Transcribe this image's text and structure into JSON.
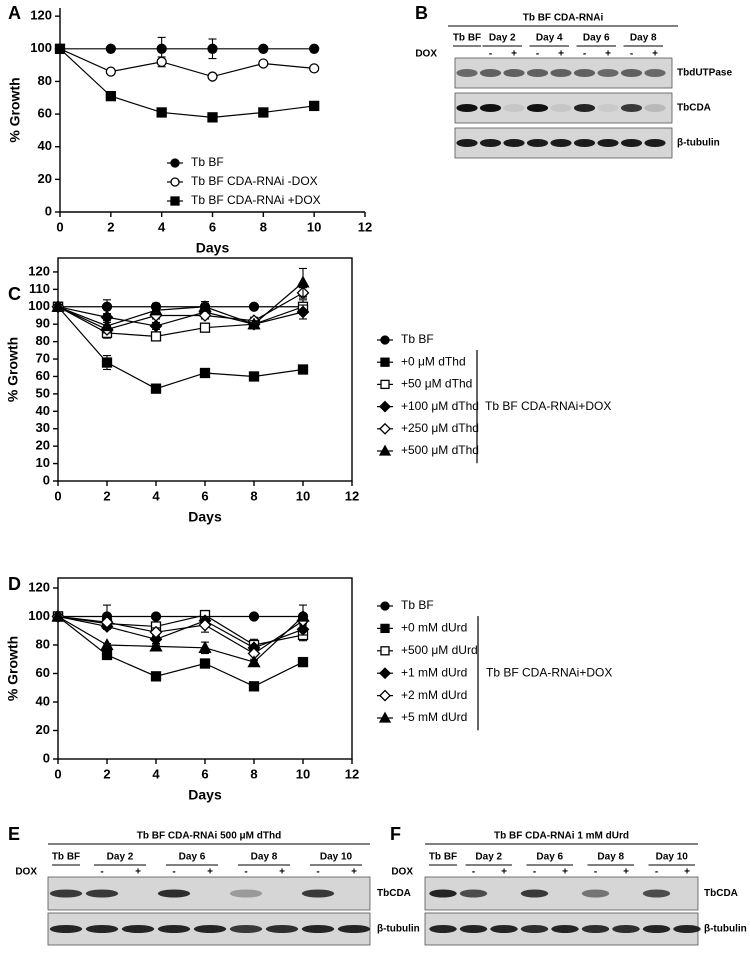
{
  "panels": [
    "A",
    "B",
    "C",
    "D",
    "E",
    "F"
  ],
  "chart_data": [
    {
      "type": "line",
      "x": [
        0,
        2,
        4,
        6,
        8,
        10
      ],
      "xlim": [
        0,
        12
      ],
      "xticks": [
        0,
        2,
        4,
        6,
        8,
        10,
        12
      ],
      "ylim": [
        0,
        125
      ],
      "yticks": [
        0,
        20,
        40,
        60,
        80,
        100,
        120
      ],
      "x_label": "Days",
      "y_label": "% Growth",
      "frame": false,
      "series": [
        {
          "name": "Tb BF",
          "color": "#000000",
          "marker": "circle-filled",
          "values": [
            100,
            100,
            100,
            100,
            100,
            100
          ],
          "errors": [
            0,
            0,
            7,
            6,
            0,
            0
          ]
        },
        {
          "name": "Tb BF CDA-RNAi -DOX",
          "color": "#000000",
          "marker": "circle-open",
          "values": [
            100,
            86,
            92,
            83,
            91,
            88
          ],
          "errors": [
            0,
            0,
            3,
            0,
            0,
            0
          ]
        },
        {
          "name": "Tb BF CDA-RNAi +DOX",
          "color": "#000000",
          "marker": "square-filled",
          "values": [
            100,
            71,
            61,
            58,
            61,
            65
          ],
          "errors": [
            0,
            0,
            0,
            0,
            0,
            2
          ]
        }
      ]
    },
    {
      "type": "line",
      "x": [
        0,
        2,
        4,
        6,
        8,
        10
      ],
      "xlim": [
        0,
        12
      ],
      "xticks": [
        0,
        2,
        4,
        6,
        8,
        10,
        12
      ],
      "ylim": [
        0,
        128
      ],
      "yticks": [
        0,
        10,
        20,
        30,
        40,
        50,
        60,
        70,
        80,
        90,
        100,
        110,
        120
      ],
      "x_label": "Days",
      "y_label": "% Growth",
      "frame": true,
      "legend_group_label": "Tb BF CDA-RNAi+DOX",
      "series": [
        {
          "name": "Tb BF",
          "color": "#000000",
          "marker": "circle-filled",
          "values": [
            100,
            100,
            100,
            100,
            100,
            100
          ],
          "errors": [
            0,
            4,
            2,
            3,
            0,
            0
          ]
        },
        {
          "name": "+0 μM dThd",
          "color": "#000000",
          "marker": "square-filled",
          "values": [
            100,
            68,
            53,
            62,
            60,
            64
          ],
          "errors": [
            0,
            4,
            1,
            1,
            1,
            1
          ]
        },
        {
          "name": "+50 μM dThd",
          "color": "#000000",
          "marker": "square-open",
          "values": [
            100,
            85,
            83,
            88,
            90,
            100
          ],
          "errors": [
            0,
            3,
            2,
            2,
            2,
            4
          ]
        },
        {
          "name": "+100 μM dThd",
          "color": "#000000",
          "marker": "diamond-filled",
          "values": [
            100,
            94,
            89,
            97,
            90,
            97
          ],
          "errors": [
            0,
            2,
            2,
            3,
            2,
            4
          ]
        },
        {
          "name": "+250 μM dThd",
          "color": "#000000",
          "marker": "diamond-open",
          "values": [
            100,
            87,
            95,
            95,
            92,
            108
          ],
          "errors": [
            0,
            2,
            2,
            2,
            2,
            3
          ]
        },
        {
          "name": "+500 μM dThd",
          "color": "#000000",
          "marker": "triangle-filled",
          "values": [
            100,
            89,
            98,
            100,
            90,
            114
          ],
          "errors": [
            0,
            2,
            2,
            2,
            2,
            8
          ]
        }
      ]
    },
    {
      "type": "line",
      "x": [
        0,
        2,
        4,
        6,
        8,
        10
      ],
      "xlim": [
        0,
        12
      ],
      "xticks": [
        0,
        2,
        4,
        6,
        8,
        10,
        12
      ],
      "ylim": [
        0,
        127
      ],
      "yticks": [
        0,
        20,
        40,
        60,
        80,
        100,
        120
      ],
      "x_label": "Days",
      "y_label": "% Growth",
      "frame": true,
      "legend_group_label": "Tb BF CDA-RNAi+DOX",
      "series": [
        {
          "name": "Tb BF",
          "color": "#000000",
          "marker": "circle-filled",
          "values": [
            100,
            100,
            100,
            100,
            100,
            100
          ],
          "errors": [
            0,
            8,
            0,
            0,
            0,
            8
          ]
        },
        {
          "name": "+0 mM dUrd",
          "color": "#000000",
          "marker": "square-filled",
          "values": [
            100,
            73,
            58,
            67,
            51,
            68
          ],
          "errors": [
            0,
            1,
            3,
            1,
            1,
            1
          ]
        },
        {
          "name": "+500 μM dUrd",
          "color": "#000000",
          "marker": "square-open",
          "values": [
            100,
            95,
            93,
            101,
            80,
            87
          ],
          "errors": [
            0,
            3,
            3,
            3,
            4,
            4
          ]
        },
        {
          "name": "+1 mM dUrd",
          "color": "#000000",
          "marker": "diamond-filled",
          "values": [
            100,
            93,
            84,
            97,
            78,
            91
          ],
          "errors": [
            0,
            2,
            3,
            3,
            2,
            4
          ]
        },
        {
          "name": "+2 mM dUrd",
          "color": "#000000",
          "marker": "diamond-open",
          "values": [
            100,
            96,
            89,
            94,
            74,
            97
          ],
          "errors": [
            0,
            2,
            3,
            5,
            4,
            3
          ]
        },
        {
          "name": "+5 mM dUrd",
          "color": "#000000",
          "marker": "triangle-filled",
          "values": [
            100,
            80,
            79,
            78,
            68,
            100
          ],
          "errors": [
            0,
            1,
            1,
            4,
            1,
            2
          ]
        }
      ]
    }
  ],
  "blots": [
    {
      "title": "Tb BF CDA-RNAi",
      "lanes": [
        "Tb BF",
        "Day 2",
        "Day 4",
        "Day 6",
        "Day 8"
      ],
      "dox_label": "DOX",
      "dox_signs": [
        "-",
        "+",
        "-",
        "+",
        "-",
        "+",
        "-",
        "+"
      ],
      "bands": [
        "TbdUTPase",
        "TbCDA",
        "β-tubulin"
      ]
    },
    {
      "title": "Tb BF CDA-RNAi 500 μM dThd",
      "lanes": [
        "Tb BF",
        "Day 2",
        "Day 6",
        "Day 8",
        "Day 10"
      ],
      "dox_label": "DOX",
      "dox_signs": [
        "-",
        "+",
        "-",
        "+",
        "-",
        "+",
        "-",
        "+"
      ],
      "bands": [
        "TbCDA",
        "β-tubulin"
      ]
    },
    {
      "title": "Tb BF CDA-RNAi 1 mM dUrd",
      "lanes": [
        "Tb BF",
        "Day 2",
        "Day 6",
        "Day 8",
        "Day 10"
      ],
      "dox_label": "DOX",
      "dox_signs": [
        "-",
        "+",
        "-",
        "+",
        "-",
        "+",
        "-",
        "+"
      ],
      "bands": [
        "TbCDA",
        "β-tubulin"
      ]
    }
  ]
}
